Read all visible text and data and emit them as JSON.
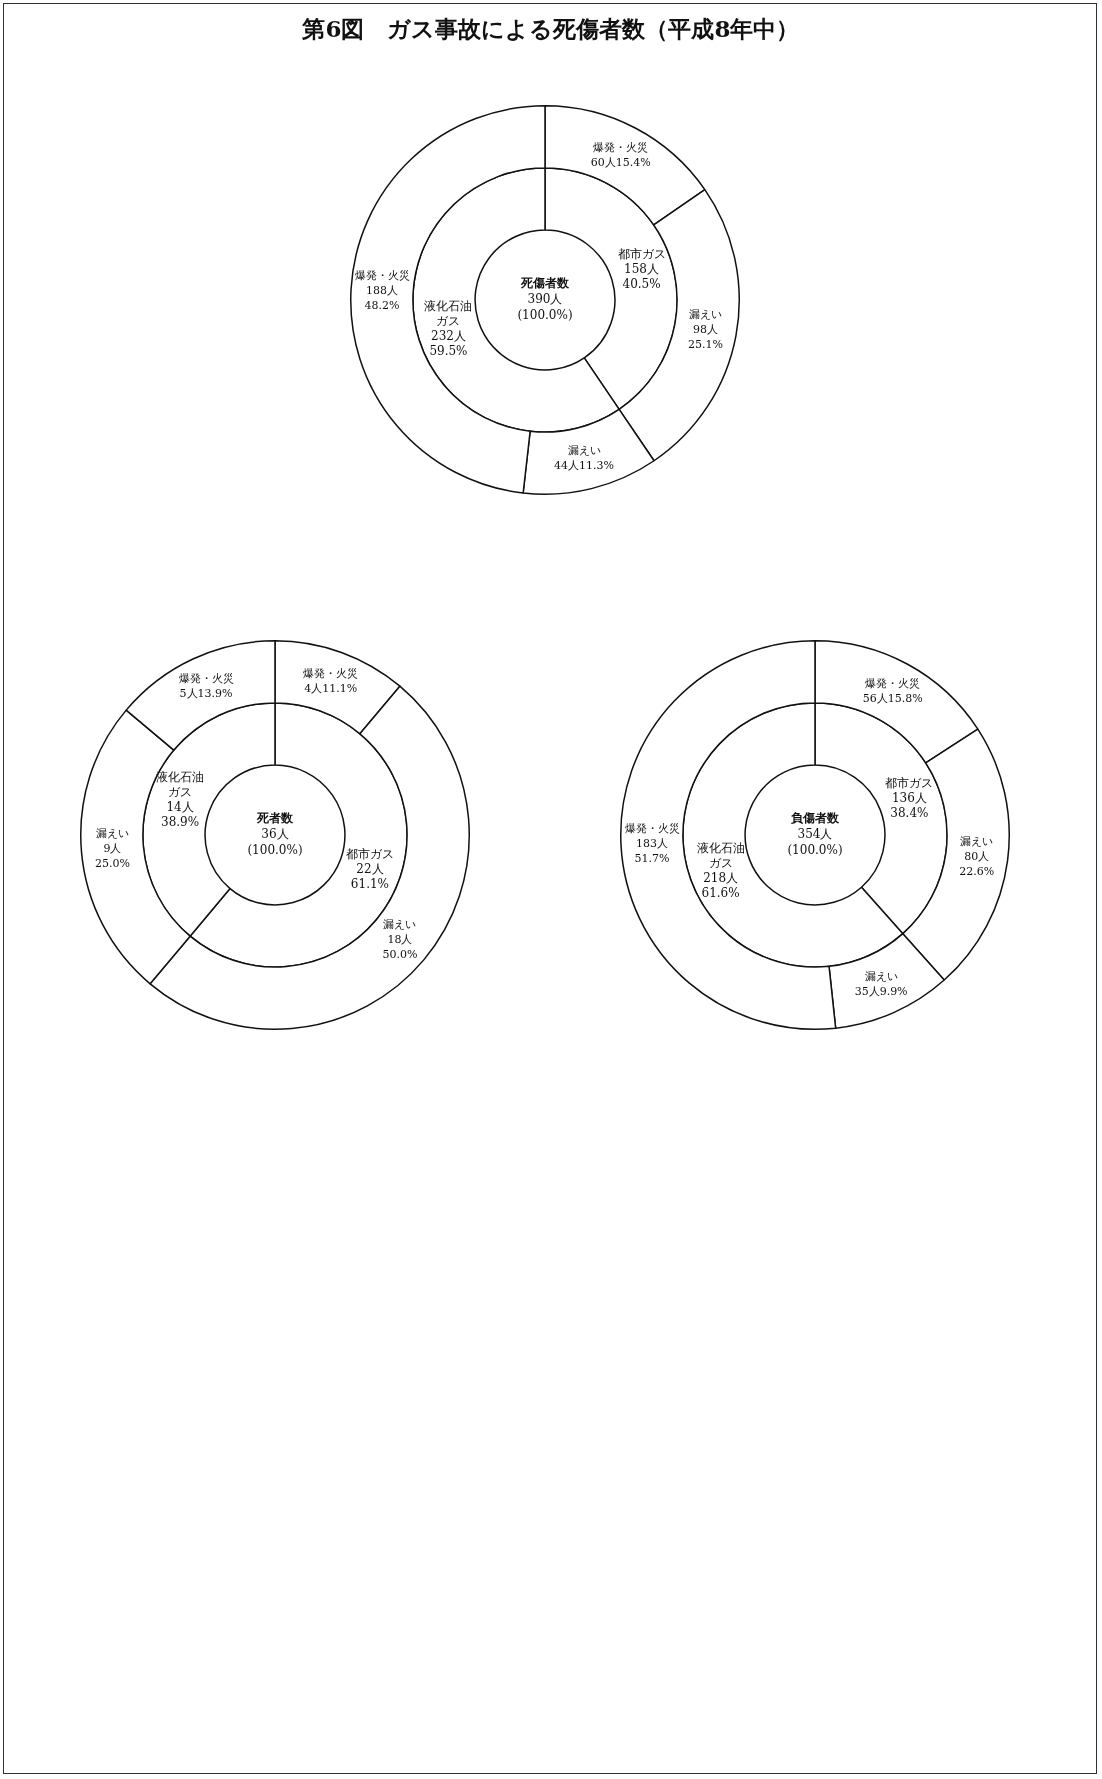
{
  "chart_data": [
    {
      "type": "donut",
      "title": "第6図　ガス事故による死傷者数（平成8年中）",
      "annotations": [
        "死傷者数",
        "390人",
        "(100.0%)"
      ],
      "legend": false,
      "series": [
        {
          "values": [
            158,
            232
          ],
          "colors": [
            "#ffffff",
            "#ffffff"
          ],
          "value_labels": [
            "都市ガス\n158人\n40.5%",
            "液化石油ガス\n232人\n59.5%"
          ]
        },
        {
          "values": [
            60,
            98,
            44,
            188
          ],
          "colors": [
            "#ffffff",
            "#ffffff",
            "#ffffff",
            "#ffffff"
          ],
          "value_labels": [
            "爆発・火災\n60人15.4%",
            "漏えい\n98人\n25.1%",
            "漏えい\n44人11.3%",
            "爆発・火災\n188人\n48.2%"
          ]
        }
      ]
    },
    {
      "type": "donut",
      "annotations": [
        "死者数",
        "36人",
        "(100.0%)"
      ],
      "legend": false,
      "series": [
        {
          "values": [
            22,
            14
          ],
          "colors": [
            "#ffffff",
            "#ffffff"
          ],
          "value_labels": [
            "都市ガス\n22人\n61.1%",
            "液化石油ガス\n14人\n38.9%"
          ]
        },
        {
          "values": [
            4,
            18,
            9,
            5
          ],
          "colors": [
            "#ffffff",
            "#ffffff",
            "#ffffff",
            "#ffffff"
          ],
          "value_labels": [
            "爆発・火災\n4人11.1%",
            "漏えい\n18人\n50.0%",
            "漏えい\n9人\n25.0%",
            "爆発・火災\n5人13.9%"
          ]
        }
      ]
    },
    {
      "type": "donut",
      "annotations": [
        "負傷者数",
        "354人",
        "(100.0%)"
      ],
      "legend": false,
      "series": [
        {
          "values": [
            136,
            218
          ],
          "colors": [
            "#ffffff",
            "#ffffff"
          ],
          "value_labels": [
            "都市ガス\n136人\n38.4%",
            "液化石油ガス\n218人\n61.6%"
          ]
        },
        {
          "values": [
            56,
            80,
            35,
            183
          ],
          "colors": [
            "#ffffff",
            "#ffffff",
            "#ffffff",
            "#ffffff"
          ],
          "value_labels": [
            "爆発・火災\n56人15.8%",
            "漏えい\n80人\n22.6%",
            "漏えい\n35人9.9%",
            "爆発・火災\n183人\n51.7%"
          ]
        }
      ]
    }
  ]
}
